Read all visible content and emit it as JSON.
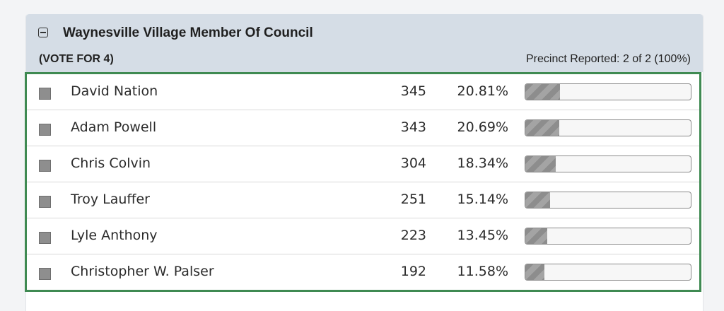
{
  "race": {
    "title": "Waynesville Village Member Of Council",
    "vote_for": "(VOTE FOR 4)",
    "precinct_reported": "Precinct Reported: 2 of 2 (100%)"
  },
  "candidates": [
    {
      "name": "David Nation",
      "votes": "345",
      "percent": "20.81%",
      "share": 0.2081
    },
    {
      "name": "Adam Powell",
      "votes": "343",
      "percent": "20.69%",
      "share": 0.2069
    },
    {
      "name": "Chris Colvin",
      "votes": "304",
      "percent": "18.34%",
      "share": 0.1834
    },
    {
      "name": "Troy Lauffer",
      "votes": "251",
      "percent": "15.14%",
      "share": 0.1514
    },
    {
      "name": "Lyle Anthony",
      "votes": "223",
      "percent": "13.45%",
      "share": 0.1345
    },
    {
      "name": "Christopher W. Palser",
      "votes": "192",
      "percent": "11.58%",
      "share": 0.1158
    }
  ],
  "colors": {
    "header_bg": "#d5dde6",
    "highlight_border": "#3f8a52",
    "swatch": "#8e8e8e"
  },
  "icons": {
    "collapse": "minus-square-icon"
  }
}
